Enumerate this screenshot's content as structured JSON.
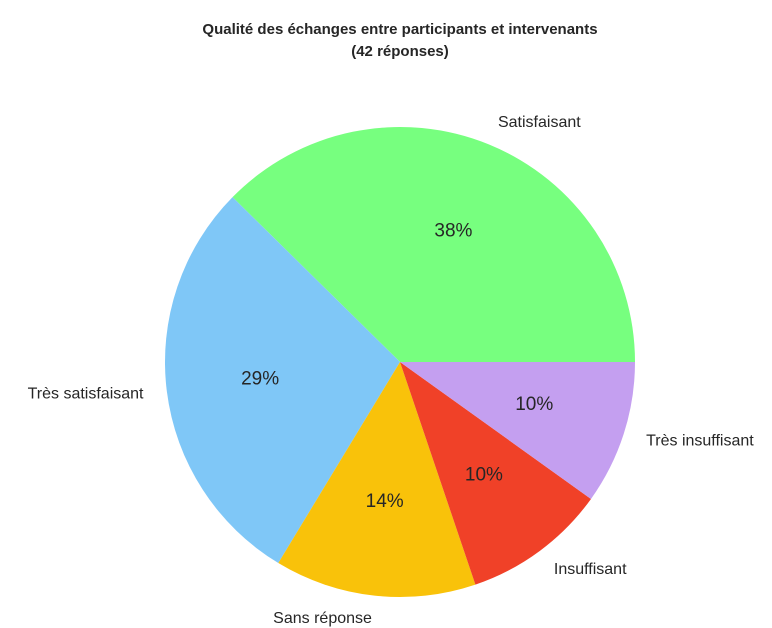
{
  "chart_data": {
    "type": "pie",
    "title": "Qualité des échanges entre participants et intervenants",
    "subtitle": "(42 réponses)",
    "categories": [
      "Satisfaisant",
      "Très satisfaisant",
      "Sans réponse",
      "Insuffisant",
      "Très insuffisant"
    ],
    "values": [
      38,
      29,
      14,
      10,
      10
    ],
    "value_labels": [
      "38%",
      "29%",
      "14%",
      "10%",
      "10%"
    ],
    "colors": [
      "#77ff7f",
      "#7fc7f7",
      "#f9c20a",
      "#f04128",
      "#c49ff0"
    ]
  }
}
